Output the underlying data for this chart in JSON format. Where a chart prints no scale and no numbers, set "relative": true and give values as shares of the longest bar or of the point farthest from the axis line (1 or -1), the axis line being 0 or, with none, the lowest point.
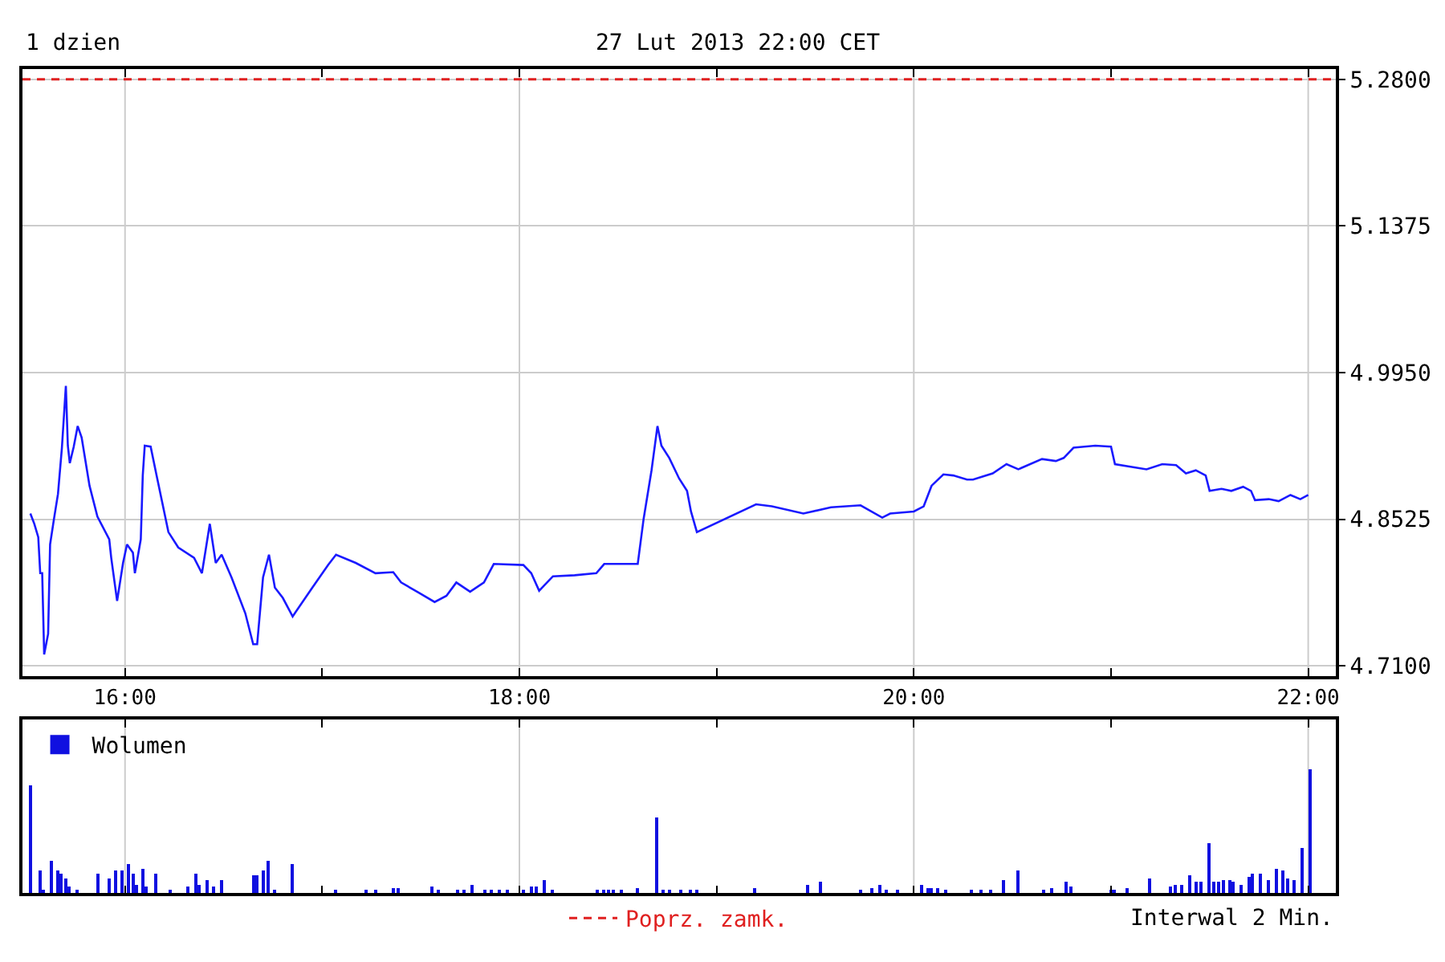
{
  "chart_data": [
    {
      "type": "line",
      "title": "1 dzien",
      "subtitle": "27 Lut 2013 22:00 CET",
      "annotations": [
        "Interwal 2 Min."
      ],
      "series": [
        {
          "color": "#1a1aff",
          "x": [
            15.52,
            15.54,
            15.56,
            15.57,
            15.58,
            15.59,
            15.61,
            15.62,
            15.64,
            15.66,
            15.68,
            15.7,
            15.71,
            15.72,
            15.74,
            15.76,
            15.78,
            15.82,
            15.86,
            15.92,
            15.93,
            15.96,
            15.99,
            16.01,
            16.04,
            16.05,
            16.08,
            16.09,
            16.1,
            16.13,
            16.16,
            16.22,
            16.27,
            16.35,
            16.39,
            16.43,
            16.46,
            16.49,
            16.54,
            16.61,
            16.65,
            16.67,
            16.7,
            16.73,
            16.76,
            16.8,
            16.85,
            16.95,
            17.03,
            17.07,
            17.17,
            17.27,
            17.36,
            17.4,
            17.49,
            17.57,
            17.63,
            17.68,
            17.75,
            17.82,
            17.87,
            18.02,
            18.06,
            18.1,
            18.17,
            18.28,
            18.39,
            18.43,
            18.6,
            18.63,
            18.67,
            18.7,
            18.72,
            18.76,
            18.81,
            18.85,
            18.87,
            18.9,
            19.2,
            19.28,
            19.44,
            19.58,
            19.73,
            19.84,
            19.88,
            20.0,
            20.05,
            20.09,
            20.15,
            20.2,
            20.27,
            20.3,
            20.4,
            20.47,
            20.53,
            20.65,
            20.72,
            20.76,
            20.81,
            20.92,
            21.0,
            21.02,
            21.18,
            21.26,
            21.33,
            21.38,
            21.43,
            21.48,
            21.5,
            21.56,
            21.61,
            21.67,
            21.71,
            21.73,
            21.8,
            21.85,
            21.91,
            21.96,
            22.0
          ],
          "values": [
            4.858,
            4.848,
            4.835,
            4.8,
            4.8,
            4.721,
            4.741,
            4.828,
            4.853,
            4.877,
            4.922,
            4.982,
            4.924,
            4.907,
            4.923,
            4.943,
            4.932,
            4.885,
            4.855,
            4.833,
            4.815,
            4.773,
            4.81,
            4.828,
            4.82,
            4.8,
            4.833,
            4.895,
            4.924,
            4.923,
            4.895,
            4.84,
            4.825,
            4.815,
            4.8,
            4.848,
            4.81,
            4.818,
            4.796,
            4.761,
            4.731,
            4.731,
            4.796,
            4.818,
            4.786,
            4.776,
            4.758,
            4.786,
            4.808,
            4.818,
            4.81,
            4.8,
            4.801,
            4.791,
            4.781,
            4.772,
            4.778,
            4.791,
            4.782,
            4.791,
            4.809,
            4.808,
            4.8,
            4.783,
            4.797,
            4.798,
            4.8,
            4.809,
            4.809,
            4.853,
            4.9,
            4.943,
            4.924,
            4.912,
            4.892,
            4.88,
            4.86,
            4.84,
            4.867,
            4.865,
            4.858,
            4.864,
            4.866,
            4.854,
            4.858,
            4.86,
            4.865,
            4.885,
            4.896,
            4.895,
            4.891,
            4.891,
            4.897,
            4.906,
            4.901,
            4.911,
            4.909,
            4.912,
            4.922,
            4.924,
            4.923,
            4.906,
            4.901,
            4.906,
            4.905,
            4.897,
            4.9,
            4.895,
            4.88,
            4.882,
            4.88,
            4.884,
            4.88,
            4.871,
            4.872,
            4.87,
            4.876,
            4.872,
            4.876
          ]
        }
      ],
      "xlim": [
        15.48,
        22.14
      ],
      "xticks": [
        {
          "value": 16,
          "label": "16:00"
        },
        {
          "value": 17,
          "label": null
        },
        {
          "value": 18,
          "label": "18:00"
        },
        {
          "value": 19,
          "label": null
        },
        {
          "value": 20,
          "label": "20:00"
        },
        {
          "value": 21,
          "label": null
        },
        {
          "value": 22,
          "label": "22:00"
        }
      ],
      "ylim": [
        4.7,
        5.29
      ],
      "yticks": [
        {
          "value": 4.71,
          "label": "4.7100"
        },
        {
          "value": 4.8525,
          "label": "4.8525"
        },
        {
          "value": 4.995,
          "label": "4.9950"
        },
        {
          "value": 5.1375,
          "label": "5.1375"
        },
        {
          "value": 5.28,
          "label": "5.2800"
        }
      ],
      "ref_lines": [
        {
          "axis": "y",
          "value": 5.28,
          "label": "Poprz. zamk.",
          "color": "#e02020",
          "line_style": "dashed"
        }
      ],
      "grid": true,
      "legend": "bottom"
    },
    {
      "type": "bar",
      "relative": true,
      "series": [
        {
          "name": "Wolumen",
          "color": "#1010e0",
          "x": [
            15.52,
            15.57,
            15.59,
            15.63,
            15.66,
            15.68,
            15.7,
            15.72,
            15.76,
            15.86,
            15.92,
            15.95,
            15.99,
            16.02,
            16.04,
            16.06,
            16.09,
            16.11,
            16.16,
            16.23,
            16.32,
            16.36,
            16.38,
            16.42,
            16.45,
            16.49,
            16.65,
            16.67,
            16.7,
            16.73,
            16.76,
            16.85,
            17.07,
            17.22,
            17.27,
            17.36,
            17.39,
            17.56,
            17.59,
            17.69,
            17.72,
            17.76,
            17.83,
            17.86,
            17.9,
            17.94,
            18.02,
            18.06,
            18.09,
            18.13,
            18.17,
            18.4,
            18.43,
            18.45,
            18.48,
            18.52,
            18.6,
            18.7,
            18.73,
            18.76,
            18.82,
            18.87,
            18.9,
            19.19,
            19.46,
            19.53,
            19.73,
            19.79,
            19.83,
            19.86,
            19.92,
            20.04,
            20.07,
            20.09,
            20.12,
            20.16,
            20.29,
            20.34,
            20.39,
            20.46,
            20.53,
            20.66,
            20.7,
            20.77,
            20.8,
            21.0,
            21.02,
            21.08,
            21.2,
            21.3,
            21.33,
            21.36,
            21.4,
            21.43,
            21.46,
            21.5,
            21.52,
            21.55,
            21.57,
            21.6,
            21.62,
            21.66,
            21.7,
            21.72,
            21.76,
            21.8,
            21.84,
            21.87,
            21.9,
            21.93,
            21.97,
            22.01
          ],
          "values": [
            0.88,
            0.18,
            0.03,
            0.26,
            0.18,
            0.16,
            0.12,
            0.05,
            0.02,
            0.16,
            0.12,
            0.18,
            0.18,
            0.23,
            0.16,
            0.07,
            0.2,
            0.05,
            0.16,
            0.02,
            0.05,
            0.16,
            0.06,
            0.1,
            0.05,
            0.1,
            0.14,
            0.15,
            0.18,
            0.26,
            0.03,
            0.24,
            0.02,
            0.02,
            0.02,
            0.04,
            0.04,
            0.05,
            0.03,
            0.02,
            0.03,
            0.06,
            0.03,
            0.02,
            0.02,
            0.02,
            0.03,
            0.05,
            0.05,
            0.1,
            0.02,
            0.02,
            0.02,
            0.02,
            0.03,
            0.02,
            0.04,
            0.62,
            0.02,
            0.02,
            0.02,
            0.02,
            0.02,
            0.04,
            0.06,
            0.09,
            0.02,
            0.04,
            0.06,
            0.03,
            0.03,
            0.06,
            0.04,
            0.04,
            0.04,
            0.02,
            0.02,
            0.02,
            0.03,
            0.1,
            0.18,
            0.03,
            0.04,
            0.09,
            0.05,
            0.02,
            0.03,
            0.04,
            0.12,
            0.05,
            0.06,
            0.06,
            0.15,
            0.09,
            0.09,
            0.4,
            0.09,
            0.09,
            0.1,
            0.1,
            0.09,
            0.06,
            0.13,
            0.16,
            0.16,
            0.1,
            0.2,
            0.18,
            0.12,
            0.1,
            0.36,
            1.0
          ]
        }
      ],
      "xlim": [
        15.48,
        22.14
      ],
      "xticks": [
        16,
        {
          "value": 17,
          "label": null
        },
        18,
        {
          "value": 19,
          "label": null
        },
        20,
        {
          "value": 21,
          "label": null
        },
        22
      ],
      "tick_labels": false,
      "grid": "x",
      "legend": "top left"
    }
  ]
}
